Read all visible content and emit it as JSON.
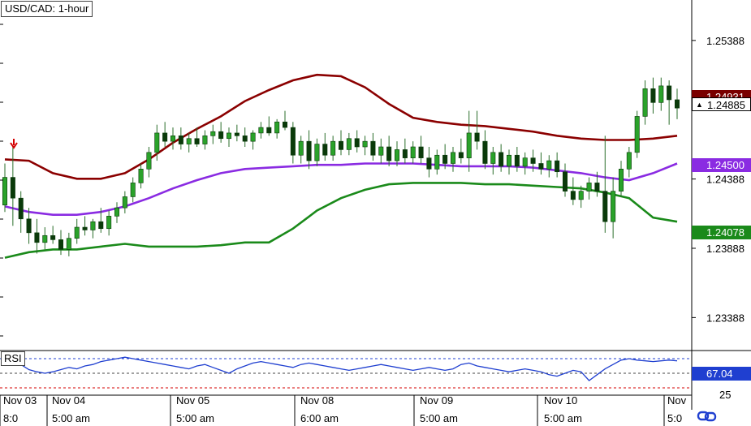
{
  "chart_data": {
    "type": "candlestick",
    "title": "USD/CAD: 1-hour",
    "y_ticks": [
      "1.25388",
      "1.24388",
      "1.23888",
      "1.23388"
    ],
    "ylim": [
      1.2315,
      1.2568
    ],
    "x_date_labels": [
      "Nov 03",
      "Nov 04",
      "Nov 05",
      "Nov 08",
      "Nov 09",
      "Nov 10",
      "Nov"
    ],
    "x_time_labels": [
      "8:0",
      "5:00 am",
      "5:00 am",
      "6:00 am",
      "5:00 am",
      "5:00 am",
      "5:0"
    ],
    "price_tags": {
      "current": "1.24885",
      "current_hidden": "1.24931",
      "middle_band": "1.24500",
      "lower_band": "1.24078"
    },
    "indicator": {
      "name": "RSI",
      "value": "67.04",
      "levels": [
        70,
        50,
        30
      ],
      "tick_label": "25"
    },
    "series": [
      {
        "name": "upper_band",
        "color": "#8b0000",
        "values": [
          1.2453,
          1.2452,
          1.2443,
          1.2439,
          1.2439,
          1.2443,
          1.2453,
          1.2465,
          1.2475,
          1.2484,
          1.2495,
          1.2503,
          1.251,
          1.2514,
          1.2513,
          1.2505,
          1.2493,
          1.2483,
          1.248,
          1.2478,
          1.2477,
          1.2475,
          1.2473,
          1.247,
          1.2468,
          1.2467,
          1.2467,
          1.2468,
          1.247
        ]
      },
      {
        "name": "middle_band",
        "color": "#8a2be2",
        "values": [
          1.2419,
          1.2415,
          1.2413,
          1.2413,
          1.2415,
          1.2419,
          1.2425,
          1.2432,
          1.2438,
          1.2443,
          1.2446,
          1.2447,
          1.2448,
          1.2449,
          1.2449,
          1.245,
          1.245,
          1.245,
          1.2449,
          1.2448,
          1.2448,
          1.2448,
          1.2447,
          1.2445,
          1.2443,
          1.244,
          1.2438,
          1.2443,
          1.245
        ]
      },
      {
        "name": "lower_band",
        "color": "#1a8a1a",
        "values": [
          1.2382,
          1.2386,
          1.2388,
          1.2388,
          1.239,
          1.2392,
          1.239,
          1.239,
          1.239,
          1.2391,
          1.2393,
          1.2393,
          1.2403,
          1.2416,
          1.2425,
          1.2431,
          1.2435,
          1.2436,
          1.2436,
          1.2436,
          1.2435,
          1.2435,
          1.2434,
          1.2433,
          1.2432,
          1.2429,
          1.2425,
          1.2411,
          1.2408
        ]
      }
    ],
    "candles": [
      {
        "o": 1.242,
        "h": 1.245,
        "l": 1.2415,
        "c": 1.244,
        "up": true
      },
      {
        "o": 1.244,
        "h": 1.2462,
        "l": 1.2405,
        "c": 1.2425,
        "up": false
      },
      {
        "o": 1.2425,
        "h": 1.243,
        "l": 1.24,
        "c": 1.241,
        "up": false
      },
      {
        "o": 1.241,
        "h": 1.2418,
        "l": 1.2392,
        "c": 1.24,
        "up": false
      },
      {
        "o": 1.24,
        "h": 1.241,
        "l": 1.2385,
        "c": 1.2393,
        "up": false
      },
      {
        "o": 1.2393,
        "h": 1.2404,
        "l": 1.2388,
        "c": 1.2398,
        "up": true
      },
      {
        "o": 1.2398,
        "h": 1.2405,
        "l": 1.2392,
        "c": 1.2395,
        "up": false
      },
      {
        "o": 1.2395,
        "h": 1.2402,
        "l": 1.2384,
        "c": 1.2388,
        "up": false
      },
      {
        "o": 1.2388,
        "h": 1.24,
        "l": 1.2383,
        "c": 1.2396,
        "up": true
      },
      {
        "o": 1.2396,
        "h": 1.241,
        "l": 1.2392,
        "c": 1.2404,
        "up": true
      },
      {
        "o": 1.2404,
        "h": 1.2412,
        "l": 1.2398,
        "c": 1.2402,
        "up": false
      },
      {
        "o": 1.2402,
        "h": 1.241,
        "l": 1.2396,
        "c": 1.2408,
        "up": true
      },
      {
        "o": 1.2408,
        "h": 1.2418,
        "l": 1.24,
        "c": 1.2403,
        "up": false
      },
      {
        "o": 1.2403,
        "h": 1.2416,
        "l": 1.2398,
        "c": 1.2412,
        "up": true
      },
      {
        "o": 1.2412,
        "h": 1.2422,
        "l": 1.2407,
        "c": 1.2418,
        "up": true
      },
      {
        "o": 1.2418,
        "h": 1.243,
        "l": 1.2414,
        "c": 1.2426,
        "up": true
      },
      {
        "o": 1.2426,
        "h": 1.244,
        "l": 1.2422,
        "c": 1.2436,
        "up": true
      },
      {
        "o": 1.2436,
        "h": 1.245,
        "l": 1.2432,
        "c": 1.2446,
        "up": true
      },
      {
        "o": 1.2446,
        "h": 1.2462,
        "l": 1.244,
        "c": 1.2458,
        "up": true
      },
      {
        "o": 1.2458,
        "h": 1.2478,
        "l": 1.2452,
        "c": 1.2472,
        "up": true
      },
      {
        "o": 1.2472,
        "h": 1.248,
        "l": 1.2462,
        "c": 1.2466,
        "up": false
      },
      {
        "o": 1.2466,
        "h": 1.2476,
        "l": 1.246,
        "c": 1.247,
        "up": true
      },
      {
        "o": 1.247,
        "h": 1.2476,
        "l": 1.246,
        "c": 1.2464,
        "up": false
      },
      {
        "o": 1.2464,
        "h": 1.2472,
        "l": 1.2458,
        "c": 1.2468,
        "up": true
      },
      {
        "o": 1.2468,
        "h": 1.2476,
        "l": 1.2462,
        "c": 1.2464,
        "up": false
      },
      {
        "o": 1.2464,
        "h": 1.2474,
        "l": 1.246,
        "c": 1.247,
        "up": true
      },
      {
        "o": 1.247,
        "h": 1.2478,
        "l": 1.2464,
        "c": 1.2473,
        "up": true
      },
      {
        "o": 1.2473,
        "h": 1.248,
        "l": 1.2465,
        "c": 1.2468,
        "up": false
      },
      {
        "o": 1.2468,
        "h": 1.2476,
        "l": 1.2462,
        "c": 1.2472,
        "up": true
      },
      {
        "o": 1.2472,
        "h": 1.2478,
        "l": 1.2466,
        "c": 1.247,
        "up": false
      },
      {
        "o": 1.247,
        "h": 1.2476,
        "l": 1.2462,
        "c": 1.2466,
        "up": false
      },
      {
        "o": 1.2466,
        "h": 1.2474,
        "l": 1.246,
        "c": 1.2472,
        "up": true
      },
      {
        "o": 1.2472,
        "h": 1.248,
        "l": 1.2468,
        "c": 1.2476,
        "up": true
      },
      {
        "o": 1.2476,
        "h": 1.2484,
        "l": 1.247,
        "c": 1.2472,
        "up": false
      },
      {
        "o": 1.2472,
        "h": 1.2482,
        "l": 1.2468,
        "c": 1.248,
        "up": true
      },
      {
        "o": 1.248,
        "h": 1.2488,
        "l": 1.2474,
        "c": 1.2476,
        "up": false
      },
      {
        "o": 1.2476,
        "h": 1.248,
        "l": 1.245,
        "c": 1.2456,
        "up": false
      },
      {
        "o": 1.2456,
        "h": 1.247,
        "l": 1.245,
        "c": 1.2466,
        "up": true
      },
      {
        "o": 1.2466,
        "h": 1.2474,
        "l": 1.2446,
        "c": 1.2452,
        "up": false
      },
      {
        "o": 1.2452,
        "h": 1.2468,
        "l": 1.2448,
        "c": 1.2464,
        "up": true
      },
      {
        "o": 1.2464,
        "h": 1.2472,
        "l": 1.2452,
        "c": 1.2456,
        "up": false
      },
      {
        "o": 1.2456,
        "h": 1.247,
        "l": 1.2452,
        "c": 1.2466,
        "up": true
      },
      {
        "o": 1.2466,
        "h": 1.2474,
        "l": 1.2456,
        "c": 1.246,
        "up": false
      },
      {
        "o": 1.246,
        "h": 1.2472,
        "l": 1.2456,
        "c": 1.2468,
        "up": true
      },
      {
        "o": 1.2468,
        "h": 1.2474,
        "l": 1.2458,
        "c": 1.2462,
        "up": false
      },
      {
        "o": 1.2462,
        "h": 1.247,
        "l": 1.2456,
        "c": 1.2466,
        "up": true
      },
      {
        "o": 1.2466,
        "h": 1.2472,
        "l": 1.2452,
        "c": 1.2456,
        "up": false
      },
      {
        "o": 1.2456,
        "h": 1.2468,
        "l": 1.245,
        "c": 1.2462,
        "up": true
      },
      {
        "o": 1.2462,
        "h": 1.247,
        "l": 1.2448,
        "c": 1.2452,
        "up": false
      },
      {
        "o": 1.2452,
        "h": 1.2466,
        "l": 1.2448,
        "c": 1.246,
        "up": true
      },
      {
        "o": 1.246,
        "h": 1.2468,
        "l": 1.245,
        "c": 1.2454,
        "up": false
      },
      {
        "o": 1.2454,
        "h": 1.2466,
        "l": 1.245,
        "c": 1.2462,
        "up": true
      },
      {
        "o": 1.2462,
        "h": 1.247,
        "l": 1.245,
        "c": 1.2454,
        "up": false
      },
      {
        "o": 1.2454,
        "h": 1.2462,
        "l": 1.244,
        "c": 1.2446,
        "up": false
      },
      {
        "o": 1.2446,
        "h": 1.246,
        "l": 1.2442,
        "c": 1.2456,
        "up": true
      },
      {
        "o": 1.2456,
        "h": 1.2464,
        "l": 1.2446,
        "c": 1.245,
        "up": false
      },
      {
        "o": 1.245,
        "h": 1.2462,
        "l": 1.2444,
        "c": 1.2458,
        "up": true
      },
      {
        "o": 1.2458,
        "h": 1.2468,
        "l": 1.245,
        "c": 1.2454,
        "up": false
      },
      {
        "o": 1.2454,
        "h": 1.2488,
        "l": 1.2444,
        "c": 1.2472,
        "up": true
      },
      {
        "o": 1.2472,
        "h": 1.2488,
        "l": 1.246,
        "c": 1.2466,
        "up": false
      },
      {
        "o": 1.2466,
        "h": 1.2474,
        "l": 1.2446,
        "c": 1.245,
        "up": false
      },
      {
        "o": 1.245,
        "h": 1.2462,
        "l": 1.2442,
        "c": 1.2458,
        "up": true
      },
      {
        "o": 1.2458,
        "h": 1.2464,
        "l": 1.2444,
        "c": 1.2448,
        "up": false
      },
      {
        "o": 1.2448,
        "h": 1.246,
        "l": 1.2442,
        "c": 1.2456,
        "up": true
      },
      {
        "o": 1.2456,
        "h": 1.2462,
        "l": 1.2444,
        "c": 1.2448,
        "up": false
      },
      {
        "o": 1.2448,
        "h": 1.2458,
        "l": 1.2442,
        "c": 1.2454,
        "up": true
      },
      {
        "o": 1.2454,
        "h": 1.246,
        "l": 1.2444,
        "c": 1.245,
        "up": false
      },
      {
        "o": 1.245,
        "h": 1.2458,
        "l": 1.2442,
        "c": 1.2446,
        "up": false
      },
      {
        "o": 1.2446,
        "h": 1.2456,
        "l": 1.244,
        "c": 1.2452,
        "up": true
      },
      {
        "o": 1.2452,
        "h": 1.2458,
        "l": 1.244,
        "c": 1.2444,
        "up": false
      },
      {
        "o": 1.2444,
        "h": 1.245,
        "l": 1.2426,
        "c": 1.243,
        "up": false
      },
      {
        "o": 1.243,
        "h": 1.244,
        "l": 1.242,
        "c": 1.2424,
        "up": false
      },
      {
        "o": 1.2424,
        "h": 1.2434,
        "l": 1.2418,
        "c": 1.243,
        "up": true
      },
      {
        "o": 1.243,
        "h": 1.244,
        "l": 1.2424,
        "c": 1.2436,
        "up": true
      },
      {
        "o": 1.2436,
        "h": 1.2444,
        "l": 1.2426,
        "c": 1.243,
        "up": false
      },
      {
        "o": 1.243,
        "h": 1.247,
        "l": 1.24,
        "c": 1.2408,
        "up": false
      },
      {
        "o": 1.2408,
        "h": 1.244,
        "l": 1.2396,
        "c": 1.243,
        "up": true
      },
      {
        "o": 1.243,
        "h": 1.2452,
        "l": 1.2426,
        "c": 1.2446,
        "up": true
      },
      {
        "o": 1.2446,
        "h": 1.2462,
        "l": 1.244,
        "c": 1.2458,
        "up": true
      },
      {
        "o": 1.2458,
        "h": 1.2488,
        "l": 1.2454,
        "c": 1.2484,
        "up": true
      },
      {
        "o": 1.2484,
        "h": 1.251,
        "l": 1.2478,
        "c": 1.2504,
        "up": true
      },
      {
        "o": 1.2504,
        "h": 1.2512,
        "l": 1.2486,
        "c": 1.2494,
        "up": false
      },
      {
        "o": 1.2494,
        "h": 1.2512,
        "l": 1.2488,
        "c": 1.2506,
        "up": true
      },
      {
        "o": 1.2506,
        "h": 1.251,
        "l": 1.2478,
        "c": 1.2496,
        "up": false
      },
      {
        "o": 1.2496,
        "h": 1.2504,
        "l": 1.2482,
        "c": 1.249,
        "up": false
      }
    ],
    "rsi_values": [
      70,
      68,
      62,
      55,
      52,
      50,
      52,
      55,
      58,
      56,
      60,
      62,
      66,
      68,
      70,
      72,
      70,
      68,
      66,
      64,
      62,
      60,
      58,
      56,
      60,
      62,
      58,
      54,
      50,
      56,
      60,
      64,
      66,
      64,
      62,
      60,
      58,
      62,
      64,
      62,
      60,
      58,
      56,
      54,
      56,
      58,
      60,
      62,
      60,
      58,
      56,
      54,
      56,
      58,
      56,
      54,
      56,
      62,
      64,
      60,
      58,
      56,
      54,
      52,
      54,
      56,
      54,
      52,
      48,
      46,
      50,
      54,
      52,
      40,
      48,
      56,
      62,
      68,
      70,
      68,
      67,
      66,
      67,
      68,
      67
    ]
  }
}
